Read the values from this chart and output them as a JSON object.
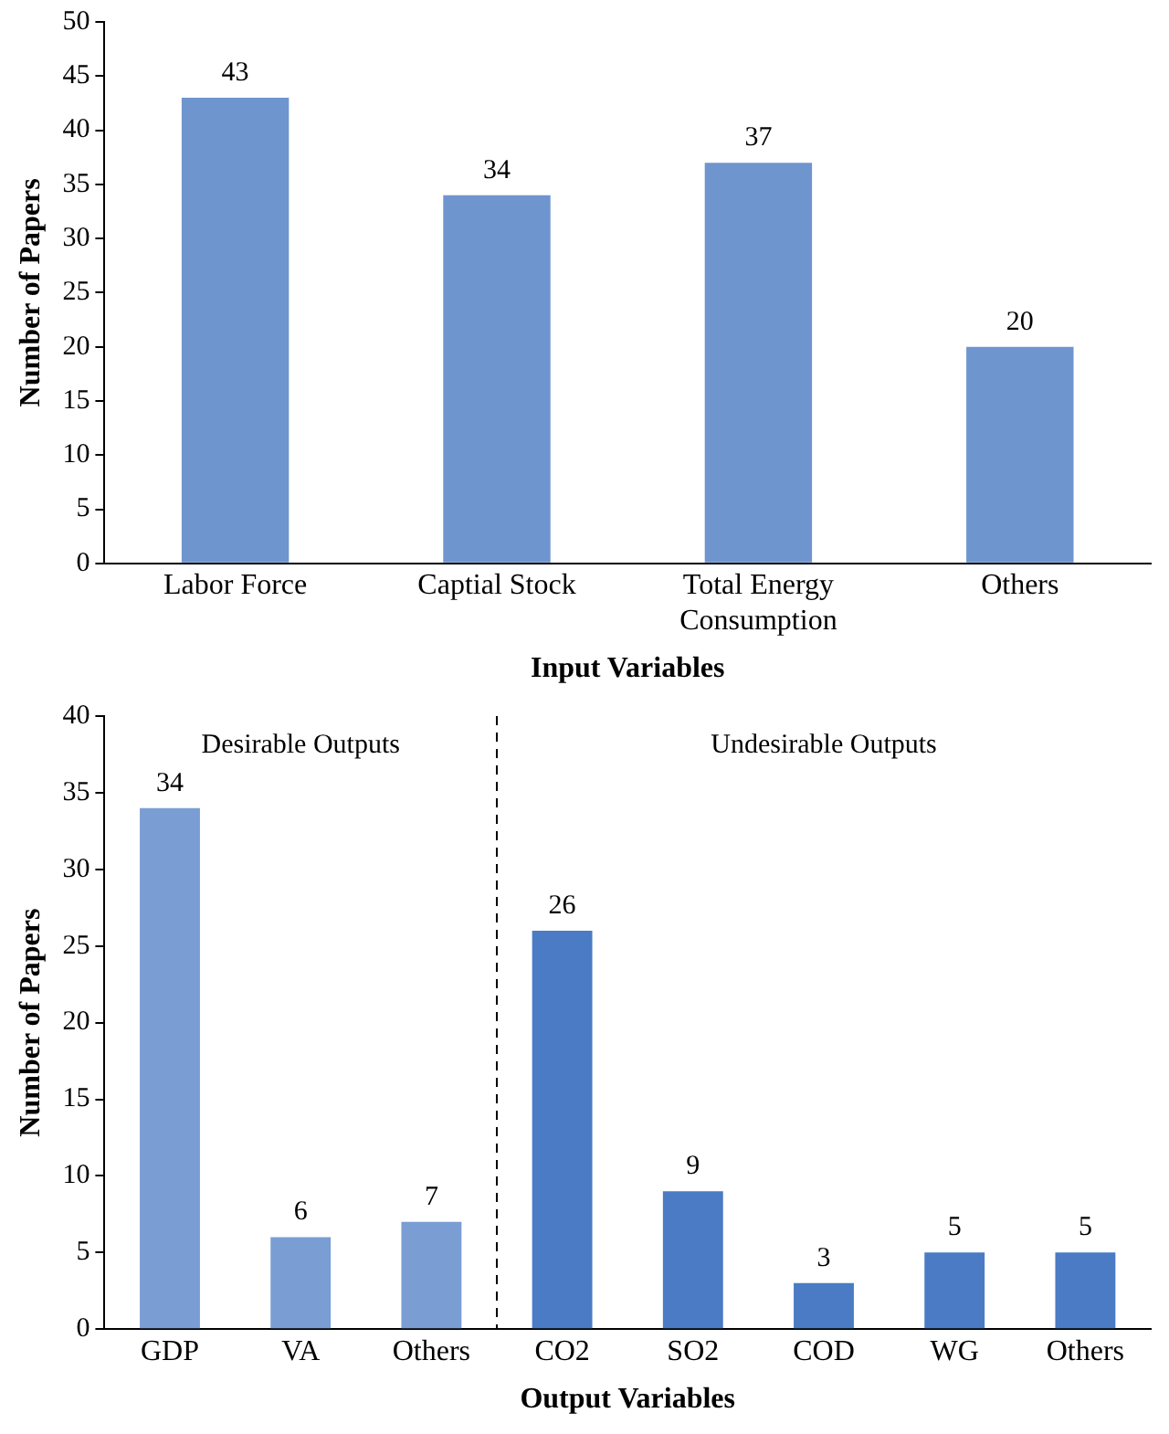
{
  "chart_data": [
    {
      "type": "bar",
      "xlabel": "Input Variables",
      "ylabel": "Number of Papers",
      "categories": [
        "Labor Force",
        "Captial Stock",
        [
          "Total Energy",
          "Consumption"
        ],
        "Others"
      ],
      "values": [
        43,
        34,
        37,
        20
      ],
      "color": "#6f95cf",
      "ylim": [
        0,
        50
      ],
      "yticks": [
        0,
        5,
        10,
        15,
        20,
        25,
        30,
        35,
        40,
        45,
        50
      ],
      "data_labels": true,
      "legend": false,
      "grid": false
    },
    {
      "type": "bar",
      "xlabel": "Output Variables",
      "ylabel": "Number of Papers",
      "categories": [
        "GDP",
        "VA",
        "Others",
        "CO2",
        "SO2",
        "COD",
        "WG",
        "Others"
      ],
      "values": [
        34,
        6,
        7,
        26,
        9,
        3,
        5,
        5
      ],
      "colors": [
        "#7a9dd3",
        "#7a9dd3",
        "#7a9dd3",
        "#4a7bc4",
        "#4a7bc4",
        "#4a7bc4",
        "#4a7bc4",
        "#4a7bc4"
      ],
      "ylim": [
        0,
        40
      ],
      "yticks": [
        0,
        5,
        10,
        15,
        20,
        25,
        30,
        35,
        40
      ],
      "data_labels": true,
      "legend": false,
      "grid": false,
      "annotations": [
        "Desirable Outputs",
        "Undesirable Outputs"
      ]
    }
  ]
}
